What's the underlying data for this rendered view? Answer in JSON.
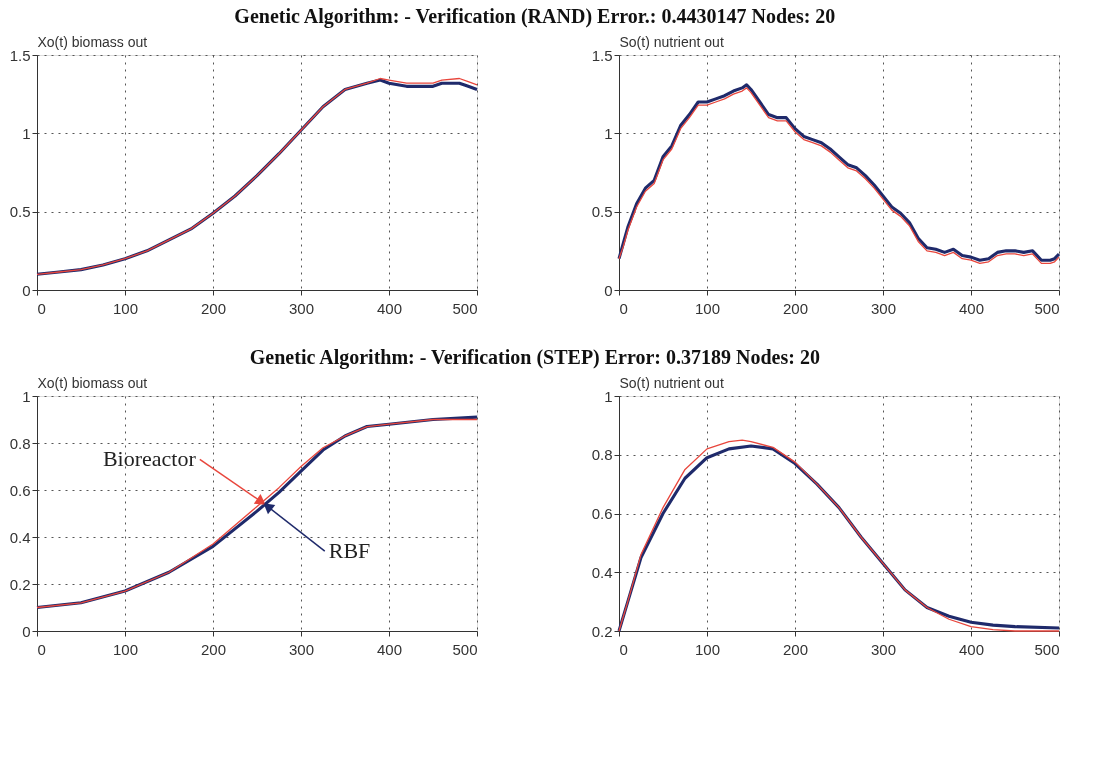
{
  "chart_data": [
    {
      "type": "line",
      "title": "Genetic Algorithm: - Verification (RAND) Error.: 0.4430147  Nodes: 20",
      "ylabel": "Xo(t) biomass out",
      "xlim": [
        0,
        500
      ],
      "xticks": [
        0,
        100,
        200,
        300,
        400,
        500
      ],
      "ylim": [
        0,
        1.5
      ],
      "yticks": [
        0,
        0.5,
        1,
        1.5
      ],
      "grid": true,
      "line_style": "solid",
      "series": [
        {
          "color": "#e8463c",
          "x": [
            0,
            25,
            50,
            75,
            100,
            125,
            150,
            175,
            200,
            225,
            250,
            275,
            300,
            325,
            350,
            375,
            390,
            400,
            420,
            450,
            460,
            480,
            490,
            500
          ],
          "values": [
            0.1,
            0.115,
            0.13,
            0.16,
            0.2,
            0.25,
            0.32,
            0.39,
            0.49,
            0.6,
            0.73,
            0.87,
            1.02,
            1.17,
            1.28,
            1.32,
            1.35,
            1.34,
            1.32,
            1.32,
            1.34,
            1.35,
            1.33,
            1.31
          ]
        },
        {
          "color": "#1f2a6b",
          "x": [
            0,
            25,
            50,
            75,
            100,
            125,
            150,
            175,
            200,
            225,
            250,
            275,
            300,
            325,
            350,
            375,
            390,
            400,
            420,
            450,
            460,
            480,
            490,
            500
          ],
          "values": [
            0.1,
            0.115,
            0.13,
            0.16,
            0.2,
            0.25,
            0.32,
            0.39,
            0.49,
            0.6,
            0.73,
            0.87,
            1.02,
            1.17,
            1.28,
            1.32,
            1.34,
            1.32,
            1.3,
            1.3,
            1.32,
            1.32,
            1.3,
            1.28
          ]
        }
      ]
    },
    {
      "type": "line",
      "ylabel": "So(t) nutrient out",
      "xlim": [
        0,
        500
      ],
      "xticks": [
        0,
        100,
        200,
        300,
        400,
        500
      ],
      "ylim": [
        0,
        1.5
      ],
      "yticks": [
        0,
        0.5,
        1,
        1.5
      ],
      "grid": true,
      "line_style": "solid",
      "series": [
        {
          "color": "#e8463c",
          "x": [
            0,
            5,
            10,
            20,
            30,
            40,
            50,
            60,
            70,
            80,
            90,
            100,
            110,
            120,
            130,
            140,
            145,
            150,
            160,
            170,
            180,
            190,
            200,
            210,
            220,
            230,
            240,
            250,
            260,
            270,
            280,
            290,
            300,
            310,
            320,
            330,
            340,
            350,
            360,
            370,
            380,
            390,
            400,
            410,
            420,
            430,
            440,
            450,
            460,
            470,
            480,
            490,
            495,
            500
          ],
          "values": [
            0.2,
            0.28,
            0.38,
            0.53,
            0.63,
            0.68,
            0.83,
            0.9,
            1.03,
            1.1,
            1.18,
            1.18,
            1.2,
            1.22,
            1.25,
            1.27,
            1.29,
            1.26,
            1.18,
            1.1,
            1.08,
            1.08,
            1.01,
            0.96,
            0.94,
            0.92,
            0.88,
            0.83,
            0.78,
            0.76,
            0.71,
            0.65,
            0.58,
            0.51,
            0.47,
            0.41,
            0.31,
            0.25,
            0.24,
            0.22,
            0.24,
            0.2,
            0.19,
            0.17,
            0.18,
            0.22,
            0.23,
            0.23,
            0.22,
            0.23,
            0.17,
            0.17,
            0.18,
            0.21
          ]
        },
        {
          "color": "#1f2a6b",
          "x": [
            0,
            5,
            10,
            20,
            30,
            40,
            50,
            60,
            70,
            80,
            90,
            100,
            110,
            120,
            130,
            140,
            145,
            150,
            160,
            170,
            180,
            190,
            200,
            210,
            220,
            230,
            240,
            250,
            260,
            270,
            280,
            290,
            300,
            310,
            320,
            330,
            340,
            350,
            360,
            370,
            380,
            390,
            400,
            410,
            420,
            430,
            440,
            450,
            460,
            470,
            480,
            490,
            495,
            500
          ],
          "values": [
            0.2,
            0.3,
            0.4,
            0.55,
            0.65,
            0.7,
            0.85,
            0.92,
            1.05,
            1.12,
            1.2,
            1.2,
            1.22,
            1.24,
            1.27,
            1.29,
            1.31,
            1.28,
            1.2,
            1.12,
            1.1,
            1.1,
            1.03,
            0.98,
            0.96,
            0.94,
            0.9,
            0.85,
            0.8,
            0.78,
            0.73,
            0.67,
            0.6,
            0.53,
            0.49,
            0.43,
            0.33,
            0.27,
            0.26,
            0.24,
            0.26,
            0.22,
            0.21,
            0.19,
            0.2,
            0.24,
            0.25,
            0.25,
            0.24,
            0.25,
            0.19,
            0.19,
            0.2,
            0.23
          ]
        }
      ]
    },
    {
      "type": "line",
      "title": "Genetic Algorithm: - Verification (STEP) Error: 0.37189  Nodes: 20",
      "ylabel": "Xo(t) biomass out",
      "xlim": [
        0,
        500
      ],
      "xticks": [
        0,
        100,
        200,
        300,
        400,
        500
      ],
      "ylim": [
        0,
        1
      ],
      "yticks": [
        0,
        0.2,
        0.4,
        0.6,
        0.8,
        1
      ],
      "grid": true,
      "line_style": "solid",
      "annotations": [
        {
          "text": "Bioreactor",
          "x": 255,
          "y": 0.55
        },
        {
          "text": "RBF",
          "x": 262,
          "y": 0.53
        }
      ],
      "series": [
        {
          "color": "#e8463c",
          "x": [
            0,
            50,
            100,
            150,
            200,
            250,
            275,
            300,
            325,
            350,
            375,
            400,
            450,
            500
          ],
          "values": [
            0.1,
            0.12,
            0.17,
            0.25,
            0.37,
            0.53,
            0.61,
            0.7,
            0.78,
            0.83,
            0.87,
            0.88,
            0.9,
            0.9
          ]
        },
        {
          "color": "#1f2a6b",
          "x": [
            0,
            50,
            100,
            150,
            200,
            250,
            275,
            300,
            325,
            350,
            375,
            400,
            450,
            500
          ],
          "values": [
            0.1,
            0.12,
            0.17,
            0.25,
            0.36,
            0.51,
            0.59,
            0.68,
            0.77,
            0.83,
            0.87,
            0.88,
            0.9,
            0.91
          ]
        }
      ]
    },
    {
      "type": "line",
      "ylabel": "So(t) nutrient out",
      "xlim": [
        0,
        500
      ],
      "xticks": [
        0,
        100,
        200,
        300,
        400,
        500
      ],
      "ylim": [
        0.2,
        1
      ],
      "yticks": [
        0.2,
        0.4,
        0.6,
        0.8,
        1
      ],
      "grid": true,
      "line_style": "solid",
      "series": [
        {
          "color": "#e8463c",
          "x": [
            0,
            10,
            25,
            50,
            75,
            100,
            125,
            140,
            150,
            175,
            200,
            225,
            250,
            275,
            300,
            325,
            350,
            375,
            400,
            425,
            450,
            500
          ],
          "values": [
            0.2,
            0.3,
            0.46,
            0.62,
            0.75,
            0.82,
            0.845,
            0.85,
            0.845,
            0.825,
            0.775,
            0.7,
            0.62,
            0.52,
            0.43,
            0.34,
            0.28,
            0.24,
            0.215,
            0.205,
            0.2,
            0.2
          ]
        },
        {
          "color": "#1f2a6b",
          "x": [
            0,
            10,
            25,
            50,
            75,
            100,
            125,
            150,
            175,
            200,
            225,
            250,
            275,
            300,
            325,
            350,
            375,
            400,
            425,
            450,
            500
          ],
          "values": [
            0.2,
            0.3,
            0.45,
            0.6,
            0.72,
            0.79,
            0.82,
            0.83,
            0.82,
            0.77,
            0.7,
            0.62,
            0.52,
            0.43,
            0.34,
            0.28,
            0.25,
            0.23,
            0.22,
            0.215,
            0.21
          ]
        }
      ]
    }
  ]
}
